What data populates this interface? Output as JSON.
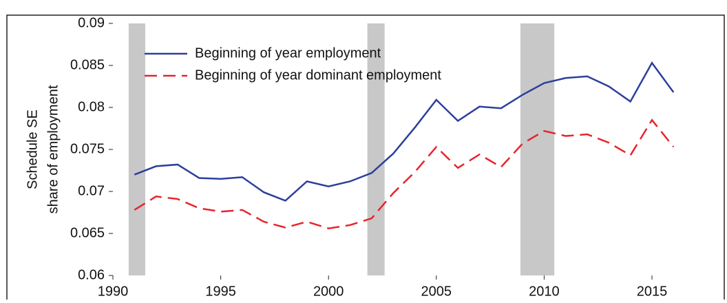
{
  "chart_data": {
    "type": "line",
    "ylabel": [
      "Schedule SE",
      "share of employment"
    ],
    "x": [
      1991,
      1992,
      1993,
      1994,
      1995,
      1996,
      1997,
      1998,
      1999,
      2000,
      2001,
      2002,
      2003,
      2004,
      2005,
      2006,
      2007,
      2008,
      2009,
      2010,
      2011,
      2012,
      2013,
      2014,
      2015,
      2016
    ],
    "series": [
      {
        "name": "Beginning of year employment",
        "color": "#2b3f9c",
        "dash": "solid",
        "values": [
          0.072,
          0.073,
          0.0732,
          0.0716,
          0.0715,
          0.0717,
          0.0699,
          0.0689,
          0.0712,
          0.0706,
          0.0712,
          0.0722,
          0.0745,
          0.0776,
          0.0809,
          0.0784,
          0.0801,
          0.0799,
          0.0815,
          0.0829,
          0.0835,
          0.0837,
          0.0825,
          0.0807,
          0.0853,
          0.0818
        ]
      },
      {
        "name": "Beginning of year dominant employment",
        "color": "#e8242a",
        "dash": "dashed",
        "values": [
          0.0678,
          0.0694,
          0.0691,
          0.068,
          0.0676,
          0.0678,
          0.0664,
          0.0657,
          0.0664,
          0.0656,
          0.066,
          0.0668,
          0.0698,
          0.0723,
          0.0753,
          0.0728,
          0.0744,
          0.0729,
          0.0757,
          0.0772,
          0.0766,
          0.0768,
          0.0758,
          0.0743,
          0.0785,
          0.0753
        ]
      }
    ],
    "shaded_periods": [
      [
        1990.73,
        1991.5
      ],
      [
        2001.8,
        2002.6
      ],
      [
        2008.9,
        2010.47
      ]
    ],
    "shade_color": "#c8c8c8",
    "xlim": [
      1990,
      2017
    ],
    "xticks": [
      1990,
      1995,
      2000,
      2005,
      2010,
      2015
    ],
    "ylim": [
      0.06,
      0.09
    ],
    "yticks": [
      0.06,
      0.065,
      0.07,
      0.075,
      0.08,
      0.085,
      0.09
    ],
    "legend": "upper left"
  }
}
